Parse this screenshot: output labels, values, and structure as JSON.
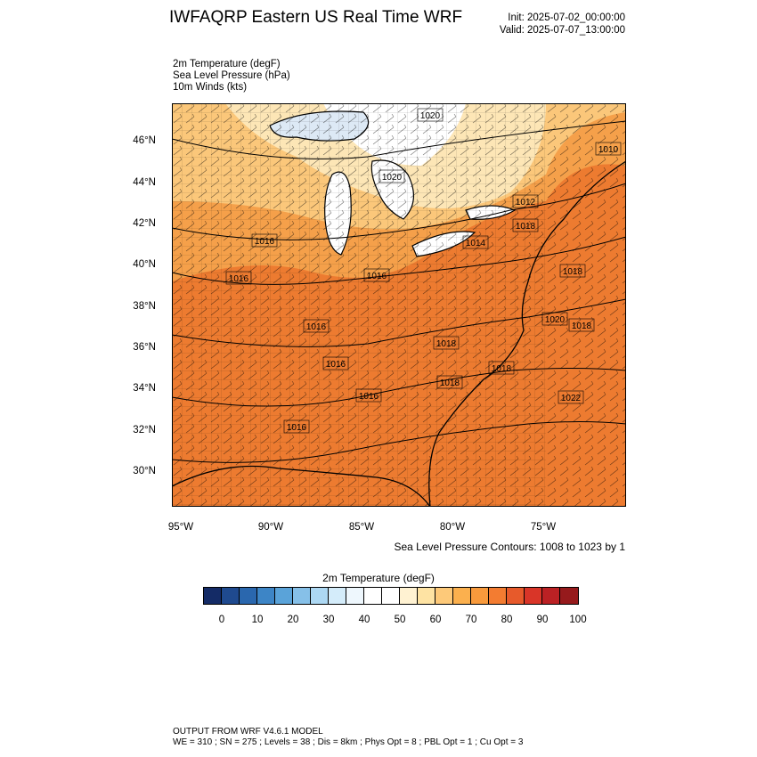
{
  "header": {
    "title": "IWFAQRP Eastern US Real Time WRF",
    "init": "Init: 2025-07-02_00:00:00",
    "valid": "Valid: 2025-07-07_13:00:00"
  },
  "fields": [
    "2m Temperature   (degF)",
    "Sea Level Pressure   (hPa)",
    "10m Winds   (kts)"
  ],
  "map": {
    "lat_labels": [
      "46°N",
      "44°N",
      "42°N",
      "40°N",
      "38°N",
      "36°N",
      "34°N",
      "32°N",
      "30°N"
    ],
    "lon_labels": [
      "95°W",
      "90°W",
      "85°W",
      "80°W",
      "75°W"
    ],
    "isobar_labels": [
      "1020",
      "1020",
      "1010",
      "1016",
      "1014",
      "1012",
      "1018",
      "1016",
      "1016",
      "1018",
      "1018",
      "1016",
      "1016",
      "1020",
      "1018",
      "1018",
      "1016",
      "1018",
      "1022",
      "1016"
    ],
    "contour_note": "Sea Level Pressure Contours: 1008 to 1023 by 1",
    "colors": {
      "ocean": "#ed7b30",
      "hot": "#f07d2e",
      "warm": "#f5a04a",
      "mild": "#fbc77a",
      "cool": "#fde6b6",
      "cold": "#ffffff",
      "coolest": "#dde9f5"
    }
  },
  "colorbar": {
    "title": "2m Temperature  (degF)",
    "colors": [
      "#142b66",
      "#1f4a8f",
      "#2a67ae",
      "#3d85c6",
      "#5aa3d9",
      "#86c0e8",
      "#add8f3",
      "#d4ecfa",
      "#eef7fd",
      "#ffffff",
      "#ffffff",
      "#fff2d2",
      "#fee3a3",
      "#fdc979",
      "#fbb04e",
      "#f89a3c",
      "#f37c31",
      "#e75a2b",
      "#d93528",
      "#bb2124",
      "#961a1c"
    ],
    "labels": [
      "0",
      "10",
      "20",
      "30",
      "40",
      "50",
      "60",
      "70",
      "80",
      "90",
      "100"
    ]
  },
  "footer": {
    "model": "OUTPUT FROM WRF V4.6.1 MODEL",
    "config": "WE = 310 ; SN = 275 ; Levels = 38 ; Dis = 8km ; Phys Opt = 8 ; PBL Opt = 1 ; Cu Opt = 3"
  }
}
